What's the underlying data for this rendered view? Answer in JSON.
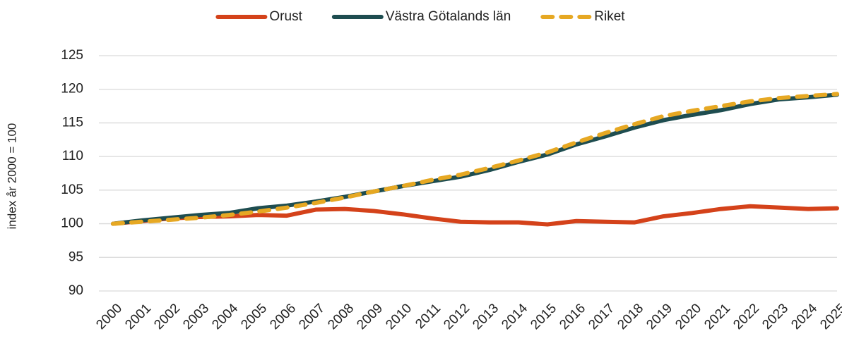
{
  "chart_data": {
    "type": "line",
    "y_label": "index år 2000 = 100",
    "categories": [
      "2000",
      "2001",
      "2002",
      "2003",
      "2004",
      "2005",
      "2006",
      "2007",
      "2008",
      "2009",
      "2010",
      "2011",
      "2012",
      "2013",
      "2014",
      "2015",
      "2016",
      "2017",
      "2018",
      "2019",
      "2020",
      "2021",
      "2022",
      "2023",
      "2024",
      "2025"
    ],
    "series": [
      {
        "name": "Orust",
        "color": "#d4421a",
        "line_style": "solid",
        "values": [
          100,
          100.4,
          100.8,
          101.0,
          101.1,
          101.3,
          101.2,
          102.1,
          102.2,
          101.9,
          101.4,
          100.8,
          100.3,
          100.2,
          100.2,
          99.9,
          100.4,
          100.3,
          100.2,
          101.1,
          101.6,
          102.2,
          102.6,
          102.4,
          102.2,
          102.3
        ]
      },
      {
        "name": "Västra Götalands län",
        "color": "#1e4d50",
        "line_style": "solid",
        "values": [
          100,
          100.5,
          100.9,
          101.3,
          101.6,
          102.3,
          102.7,
          103.3,
          104.0,
          104.8,
          105.6,
          106.3,
          107.0,
          108.0,
          109.2,
          110.3,
          111.8,
          113.0,
          114.3,
          115.4,
          116.2,
          116.9,
          117.8,
          118.5,
          118.8,
          119.2
        ]
      },
      {
        "name": "Riket",
        "color": "#e6a823",
        "line_style": "dashed",
        "values": [
          100,
          100.3,
          100.6,
          100.9,
          101.3,
          101.8,
          102.4,
          103.1,
          103.9,
          104.8,
          105.6,
          106.5,
          107.3,
          108.3,
          109.4,
          110.6,
          112.1,
          113.5,
          114.8,
          116.0,
          116.8,
          117.5,
          118.2,
          118.7,
          119.0,
          119.3
        ]
      }
    ],
    "ylim": [
      90,
      125
    ],
    "yticks": [
      90,
      95,
      100,
      105,
      110,
      115,
      120,
      125
    ],
    "grid": true,
    "legend": "top"
  }
}
